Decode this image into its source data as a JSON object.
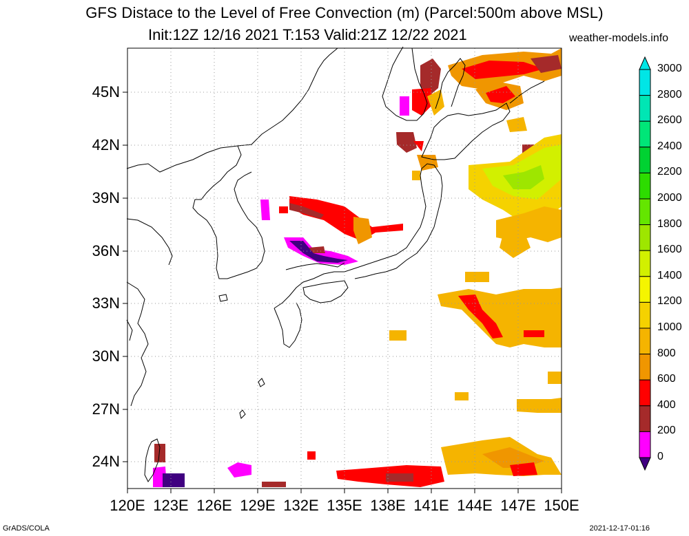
{
  "header": {
    "title": "GFS Distace to the Level of Free Convection (m) (Parcel:500m above MSL)",
    "subtitle": "Init:12Z 12/16 2021 T:153 Valid:21Z 12/22 2021",
    "site": "weather-models.info"
  },
  "footer": {
    "credit": "GrADS/COLA",
    "timestamp": "2021-12-17-01:16"
  },
  "axes": {
    "lat_labels": [
      "45N",
      "42N",
      "39N",
      "36N",
      "33N",
      "30N",
      "27N",
      "24N"
    ],
    "lon_labels": [
      "120E",
      "123E",
      "126E",
      "129E",
      "132E",
      "135E",
      "138E",
      "141E",
      "144E",
      "147E",
      "150E"
    ]
  },
  "colorbar": {
    "labels": [
      "3000",
      "2800",
      "2600",
      "2400",
      "2200",
      "2000",
      "1800",
      "1600",
      "1400",
      "1200",
      "1000",
      "800",
      "600",
      "400",
      "200",
      "0"
    ],
    "colors": [
      "#00e6e6",
      "#00e6b4",
      "#00e678",
      "#00d232",
      "#2ddc00",
      "#64e600",
      "#9ee600",
      "#d2f000",
      "#f5f500",
      "#f5d200",
      "#f5b400",
      "#f09600",
      "#ff0000",
      "#a52a2a",
      "#ff00ff",
      "#400080"
    ]
  }
}
